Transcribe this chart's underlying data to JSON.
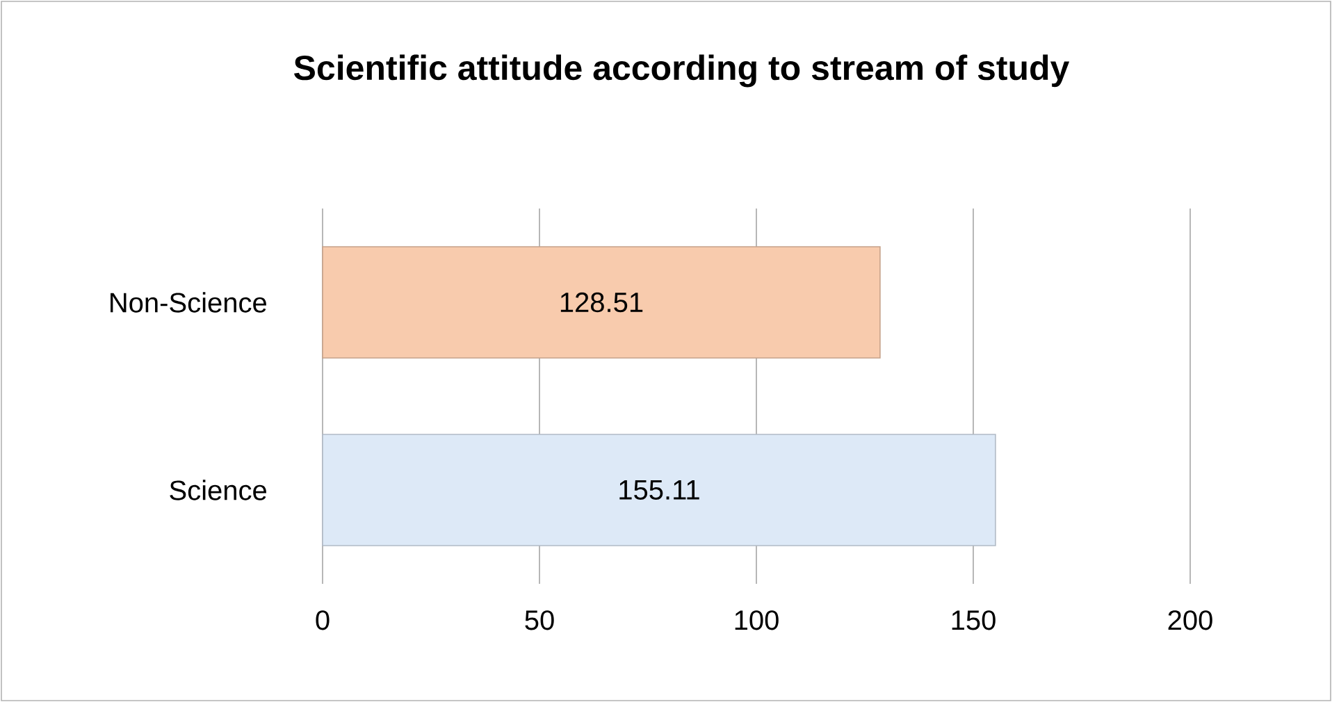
{
  "chart_data": {
    "type": "bar",
    "orientation": "horizontal",
    "title": "Scientific attitude according to stream of study",
    "categories": [
      "Non-Science",
      "Science"
    ],
    "values": [
      128.51,
      155.11
    ],
    "colors": [
      "#f8cbad",
      "#dde9f7"
    ],
    "xlim": [
      0,
      200
    ],
    "xticks": [
      0,
      50,
      100,
      150,
      200
    ],
    "grid": "x",
    "data_labels": true
  }
}
